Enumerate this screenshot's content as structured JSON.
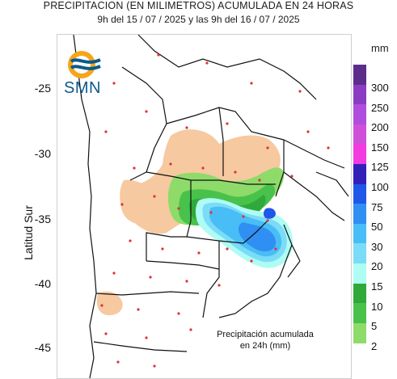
{
  "title": {
    "line1": "PRECIPITACION (EN MILIMETROS) ACUMULADA EN 24 HORAS",
    "line2": "9h del 15 / 07 / 2025  y las 9h del 16 / 07 / 2025"
  },
  "logo": {
    "text": "SMN",
    "icon": "smn-wave-logo-icon"
  },
  "axis": {
    "label": "Latitud Sur",
    "ticks": [
      "-25",
      "-30",
      "-35",
      "-40",
      "-45"
    ]
  },
  "legend": {
    "unit": "mm",
    "items": [
      {
        "label": "300",
        "color": "#5d2d8c"
      },
      {
        "label": "250",
        "color": "#8a3dc2"
      },
      {
        "label": "200",
        "color": "#b04dde"
      },
      {
        "label": "150",
        "color": "#d04fd8"
      },
      {
        "label": "125",
        "color": "#f23be0"
      },
      {
        "label": "100",
        "color": "#3320b8"
      },
      {
        "label": "75",
        "color": "#1f57e8"
      },
      {
        "label": "50",
        "color": "#2f8ff3"
      },
      {
        "label": "30",
        "color": "#49bdf5"
      },
      {
        "label": "20",
        "color": "#7bdcf7"
      },
      {
        "label": "15",
        "color": "#aefcf4"
      },
      {
        "label": "10",
        "color": "#2faa3a"
      },
      {
        "label": "5",
        "color": "#49c24c"
      },
      {
        "label": "2",
        "color": "#8edb6a"
      }
    ]
  },
  "caption": {
    "line1": "Precipitación acumulada",
    "line2": "en 24h (mm)"
  },
  "colors": {
    "light_rain": "#f6c9a0",
    "green_dark": "#2faa3a",
    "green_mid": "#49c24c",
    "green_light": "#8edb6a",
    "cyan": "#aefcf4",
    "blue_light": "#49bdf5",
    "blue_mid": "#2f8ff3",
    "blue_dark": "#1f57e8",
    "station_dot": "#e0303a",
    "border": "#111111"
  }
}
